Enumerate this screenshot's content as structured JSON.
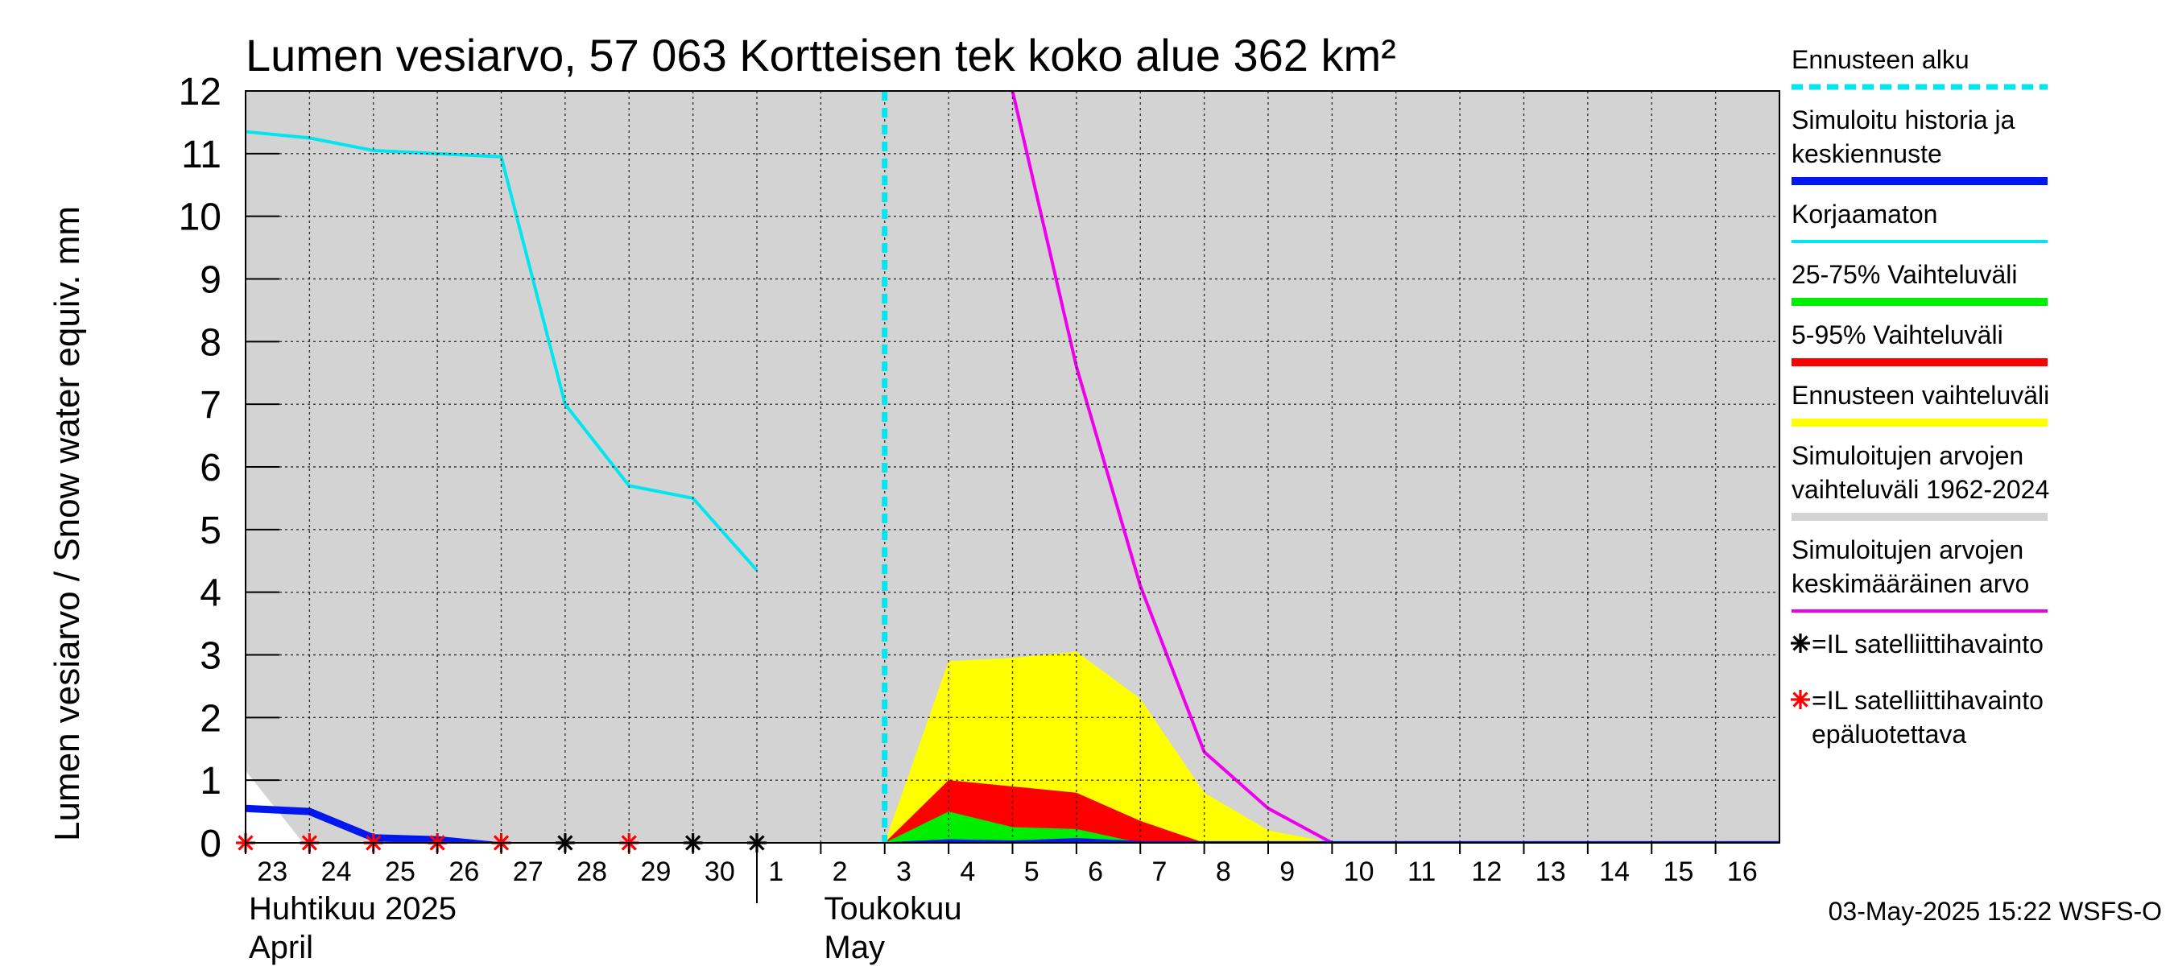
{
  "chart_data": {
    "type": "area",
    "title": "Lumen vesiarvo, 57 063 Kortteisen tek koko alue 362 km²",
    "ylabel": "Lumen vesiarvo / Snow water equiv.    mm",
    "ylim": [
      0,
      12
    ],
    "yticks": [
      0,
      1,
      2,
      3,
      4,
      5,
      6,
      7,
      8,
      9,
      10,
      11,
      12
    ],
    "xlim": [
      0,
      24
    ],
    "x_tick_labels": [
      "23",
      "24",
      "25",
      "26",
      "27",
      "28",
      "29",
      "30",
      "1",
      "2",
      "3",
      "4",
      "5",
      "6",
      "7",
      "8",
      "9",
      "10",
      "11",
      "12",
      "13",
      "14",
      "15",
      "16"
    ],
    "x_tick_days": [
      0,
      1,
      2,
      3,
      4,
      5,
      6,
      7,
      8,
      9,
      10,
      11,
      12,
      13,
      14,
      15,
      16,
      17,
      18,
      19,
      20,
      21,
      22,
      23
    ],
    "month_labels": [
      {
        "line1": "Huhtikuu  2025",
        "line2": "April",
        "day": 0
      },
      {
        "line1": "Toukokuu",
        "line2": "May",
        "day": 9
      }
    ],
    "month_boundary_day": 8,
    "forecast_start_day": 10,
    "grid": true,
    "series": [
      {
        "name": "Simuloitujen arvojen vaihteluväli 1962-2024",
        "type": "area",
        "color": "#d3d3d3",
        "x": [
          0,
          0.9,
          24
        ],
        "upper": [
          12,
          12,
          12
        ],
        "lower": [
          1.15,
          0,
          0
        ]
      },
      {
        "name": "Ennusteen vaihteluväli",
        "type": "area",
        "color": "#ffff00",
        "x": [
          10,
          11,
          12,
          13,
          14,
          15,
          16,
          17
        ],
        "upper": [
          0,
          2.9,
          2.95,
          3.05,
          2.3,
          0.8,
          0.2,
          0
        ],
        "lower": [
          0,
          0,
          0,
          0,
          0,
          0,
          0,
          0
        ]
      },
      {
        "name": "5-95% Vaihteluväli",
        "type": "area",
        "color": "#ff0000",
        "x": [
          10,
          11,
          12,
          13,
          14,
          15
        ],
        "upper": [
          0,
          1,
          0.9,
          0.8,
          0.35,
          0
        ],
        "lower": [
          0,
          0,
          0,
          0,
          0,
          0
        ]
      },
      {
        "name": "25-75% Vaihteluväli",
        "type": "area",
        "color": "#00ee00",
        "x": [
          10,
          11,
          12,
          13,
          14
        ],
        "upper": [
          0,
          0.5,
          0.25,
          0.22,
          0
        ],
        "lower": [
          0,
          0,
          0,
          0,
          0
        ]
      },
      {
        "name": "Korjaamaton",
        "type": "line",
        "color": "#00e5ee",
        "x": [
          0,
          1,
          2,
          3,
          4,
          5,
          6,
          7,
          8
        ],
        "y": [
          11.35,
          11.25,
          11.05,
          11.0,
          10.95,
          7.0,
          5.7,
          5.5,
          4.35
        ]
      },
      {
        "name": "Simuloitujen arvojen keskimääräinen arvo",
        "type": "line",
        "color": "#ee00ee",
        "x": [
          12,
          13,
          14,
          15,
          16,
          17,
          24
        ],
        "y": [
          12,
          7.6,
          4.1,
          1.45,
          0.55,
          0,
          0
        ]
      },
      {
        "name": "Simuloitu historia ja keskiennuste",
        "type": "line",
        "color": "#0018ee",
        "x": [
          0,
          1,
          2,
          3,
          4,
          5,
          10,
          11,
          12,
          13,
          14,
          15,
          16,
          17,
          24
        ],
        "y": [
          0.55,
          0.5,
          0.08,
          0.05,
          -0.05,
          -0.05,
          -0.05,
          0.0,
          -0.02,
          0.02,
          -0.03,
          -0.03,
          -0.03,
          -0.03,
          -0.03
        ]
      }
    ],
    "markers": [
      {
        "name": "=IL satelliittihavainto",
        "color": "#000000",
        "x": [
          5,
          7,
          8
        ],
        "y": [
          0,
          0,
          0
        ]
      },
      {
        "name": "=IL satelliittihavainto epäluotettava",
        "color": "#ff0000",
        "x": [
          0,
          1,
          2,
          3,
          4,
          6
        ],
        "y": [
          0,
          0,
          0,
          0,
          0,
          0
        ]
      }
    ]
  },
  "legend": [
    {
      "label_lines": [
        "Ennusteen alku"
      ],
      "color": "#00e5ee",
      "style": "dashed"
    },
    {
      "label_lines": [
        "Simuloitu historia ja",
        "keskiennuste"
      ],
      "color": "#0018ee",
      "style": "solid"
    },
    {
      "label_lines": [
        "Korjaamaton"
      ],
      "color": "#00e5ee",
      "style": "thin"
    },
    {
      "label_lines": [
        "25-75% Vaihteluväli"
      ],
      "color": "#00ee00",
      "style": "solid"
    },
    {
      "label_lines": [
        "5-95% Vaihteluväli"
      ],
      "color": "#ff0000",
      "style": "solid"
    },
    {
      "label_lines": [
        "Ennusteen vaihteluväli"
      ],
      "color": "#ffff00",
      "style": "solid"
    },
    {
      "label_lines": [
        "Simuloitujen arvojen",
        "vaihteluväli 1962-2024"
      ],
      "color": "#d3d3d3",
      "style": "solid"
    },
    {
      "label_lines": [
        "Simuloitujen arvojen",
        "keskimääräinen arvo"
      ],
      "color": "#ee00ee",
      "style": "thin"
    },
    {
      "label_lines": [
        "=IL satelliittihavainto"
      ],
      "color": "#000000",
      "style": "marker"
    },
    {
      "label_lines": [
        "=IL satelliittihavainto",
        "epäluotettava"
      ],
      "color": "#ff0000",
      "style": "marker"
    }
  ],
  "footer": "03-May-2025 15:22 WSFS-O"
}
